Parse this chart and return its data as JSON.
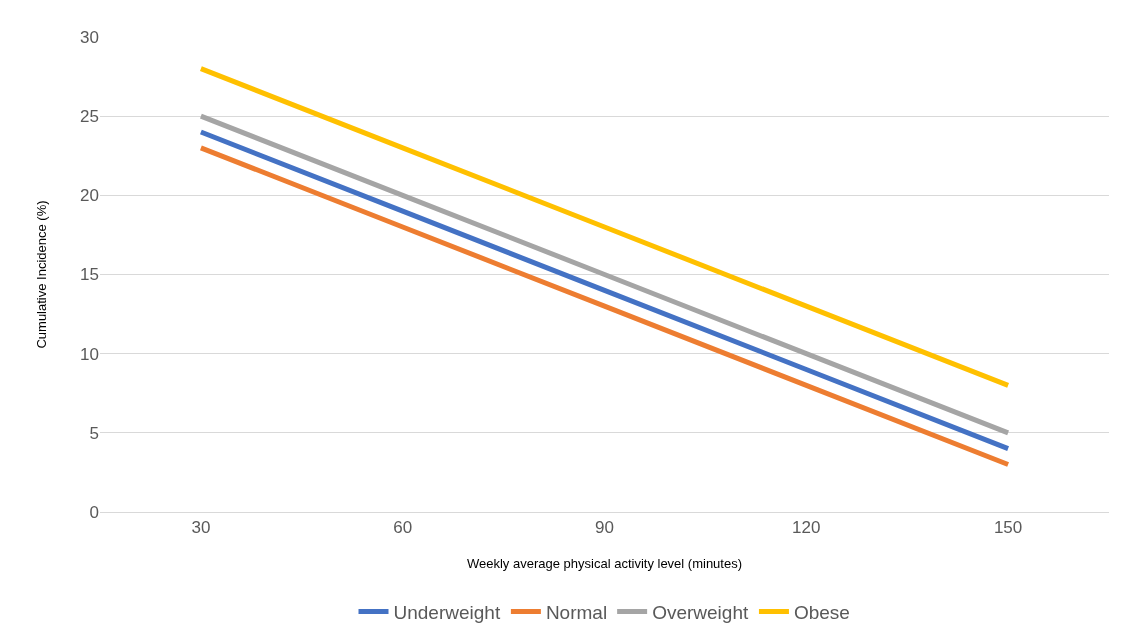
{
  "chart_data": {
    "type": "line",
    "xlabel": "Weekly average physical activity level (minutes)",
    "ylabel": "Cumulative Incidence (%)",
    "categories": [
      "30",
      "60",
      "90",
      "120",
      "150"
    ],
    "series": [
      {
        "name": "Underweight",
        "color": "#4472c4",
        "values": [
          24,
          19,
          14,
          9,
          4
        ]
      },
      {
        "name": "Normal",
        "color": "#ed7d31",
        "values": [
          23,
          18,
          13,
          8,
          3
        ]
      },
      {
        "name": "Overweight",
        "color": "#a5a5a5",
        "values": [
          25,
          20,
          15,
          10,
          5
        ]
      },
      {
        "name": "Obese",
        "color": "#ffc000",
        "values": [
          28,
          23,
          18,
          13,
          8
        ]
      }
    ],
    "ylim": [
      0,
      30
    ],
    "yticks": [
      0,
      5,
      10,
      15,
      20,
      25,
      30
    ],
    "grid": "y",
    "legend": "bottom",
    "marker": "none",
    "line_style": "solid"
  }
}
